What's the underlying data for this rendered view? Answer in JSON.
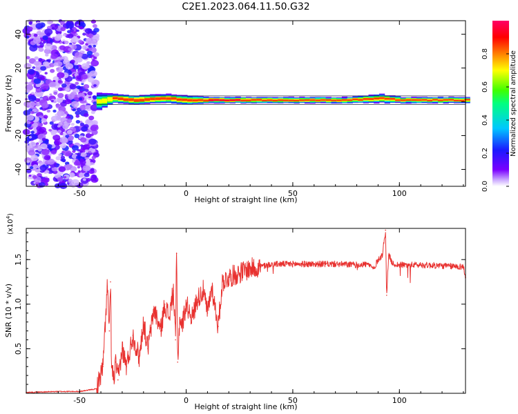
{
  "figure": {
    "title": "C2E1.2023.064.11.50.G32"
  },
  "chart_data": [
    {
      "type": "heatmap",
      "title": "C2E1.2023.064.11.50.G32",
      "xlabel": "Height of straight line (km)",
      "ylabel": "Frequency (Hz)",
      "xlim": [
        -75,
        131
      ],
      "ylim": [
        -50,
        48
      ],
      "x_ticks": [
        -50,
        0,
        50,
        100
      ],
      "y_ticks": [
        -40,
        -20,
        0,
        20,
        40
      ],
      "colorbar": {
        "label": "Normalized spectral amplitude",
        "range": [
          0,
          1
        ],
        "ticks": [
          0.0,
          0.2,
          0.4,
          0.6,
          0.8
        ],
        "colormap": "rainbow (purple-blue-cyan-green-yellow-red-magenta)"
      },
      "description_of_field": "Broadband noise (amplitude ~0.1-0.3) from -75 to -42 km across all frequencies; narrow band near 0 to 2 Hz from -42 km onward with peak amplitude ~0.8-1.0 (red) along 1-2 Hz",
      "band": {
        "x": [
          -42,
          -35,
          -25,
          -10,
          0,
          10,
          25,
          50,
          75,
          90,
          100,
          131
        ],
        "center_freq": [
          0,
          2,
          1,
          2,
          1,
          1,
          1,
          1,
          1,
          2,
          1,
          1
        ],
        "half_width_hz": [
          6,
          3,
          3,
          3,
          3,
          2,
          2,
          2,
          2,
          3,
          2,
          2
        ],
        "peak_amplitude": [
          0.7,
          0.9,
          0.95,
          0.9,
          0.9,
          0.95,
          0.95,
          0.9,
          0.9,
          0.85,
          0.9,
          0.9
        ]
      }
    },
    {
      "type": "line",
      "xlabel": "Height of straight line (km)",
      "ylabel": "SNR (10 * v/v)",
      "y_multiplier": "(x10",
      "y_multiplier_exp": "4",
      "y_multiplier_close": ")",
      "xlim": [
        -75,
        131
      ],
      "ylim": [
        0,
        1.85
      ],
      "x_ticks": [
        -50,
        0,
        50,
        100
      ],
      "y_ticks": [
        0.5,
        1.0,
        1.5
      ],
      "y_tick_labels": [
        "0.5",
        "1.0",
        "1.5"
      ],
      "series": [
        {
          "color": "#e8312f",
          "x": [
            -75,
            -60,
            -50,
            -42,
            -39,
            -37,
            -36,
            -35.5,
            -35,
            -34,
            -33,
            -32,
            -30,
            -28,
            -25,
            -22,
            -20,
            -18,
            -15,
            -12,
            -10,
            -8,
            -6,
            -5,
            -4.5,
            -4,
            -3,
            -2,
            0,
            3,
            5,
            8,
            10,
            12,
            15,
            17,
            20,
            25,
            30,
            35,
            40,
            50,
            60,
            70,
            80,
            85,
            88,
            90,
            92,
            93.5,
            94,
            95,
            97,
            100,
            110,
            120,
            130,
            131
          ],
          "y": [
            0.01,
            0.02,
            0.02,
            0.05,
            0.3,
            1.2,
            0.7,
            1.25,
            0.3,
            0.15,
            0.35,
            0.15,
            0.5,
            0.3,
            0.65,
            0.4,
            0.8,
            0.5,
            0.95,
            0.7,
            1.0,
            0.85,
            1.15,
            0.6,
            1.57,
            0.35,
            0.85,
            0.75,
            1.0,
            0.85,
            1.05,
            1.15,
            0.9,
            1.2,
            0.75,
            1.25,
            1.3,
            1.35,
            1.4,
            1.42,
            1.45,
            1.45,
            1.45,
            1.45,
            1.44,
            1.45,
            1.4,
            1.5,
            1.55,
            1.83,
            1.1,
            1.55,
            1.45,
            1.44,
            1.44,
            1.43,
            1.42,
            1.3
          ]
        }
      ]
    }
  ]
}
